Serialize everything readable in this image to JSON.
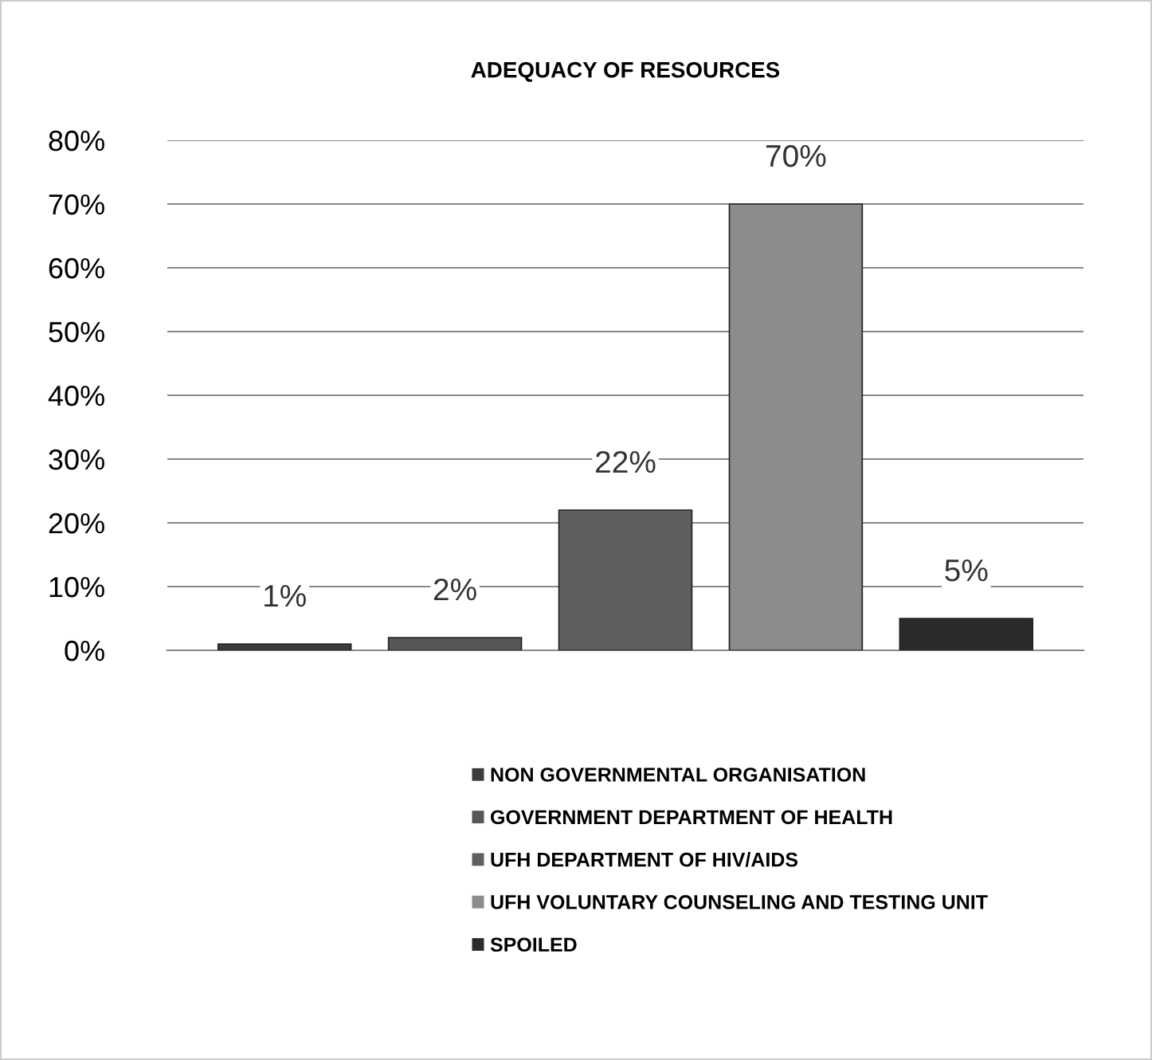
{
  "chart_data": {
    "type": "bar",
    "title": "ADEQUACY OF RESOURCES",
    "categories": [
      null
    ],
    "series": [
      {
        "name": "NON GOVERNMENTAL ORGANISATION",
        "color": "#3c3c3c",
        "values": [
          1
        ],
        "value_labels": [
          "1%"
        ]
      },
      {
        "name": "GOVERNMENT DEPARTMENT OF HEALTH",
        "color": "#575757",
        "values": [
          2
        ],
        "value_labels": [
          "2%"
        ]
      },
      {
        "name": "UFH DEPARTMENT OF HIV/AIDS",
        "color": "#5f5f5f",
        "values": [
          22
        ],
        "value_labels": [
          "22%"
        ]
      },
      {
        "name": "UFH VOLUNTARY COUNSELING AND TESTING UNIT",
        "color": "#8c8c8c",
        "values": [
          70
        ],
        "value_labels": [
          "70%"
        ]
      },
      {
        "name": "SPOILED",
        "color": "#2b2b2b",
        "values": [
          5
        ],
        "value_labels": [
          "5%"
        ]
      }
    ],
    "ylim": [
      0,
      80
    ],
    "yticks": [
      {
        "value": 0,
        "label": "0%"
      },
      {
        "value": 10,
        "label": "10%"
      },
      {
        "value": 20,
        "label": "20%"
      },
      {
        "value": 30,
        "label": "30%"
      },
      {
        "value": 40,
        "label": "40%"
      },
      {
        "value": 50,
        "label": "50%"
      },
      {
        "value": 60,
        "label": "60%"
      },
      {
        "value": 70,
        "label": "70%"
      },
      {
        "value": 80,
        "label": "80%"
      }
    ],
    "grid": "y",
    "legend": "bottom"
  }
}
